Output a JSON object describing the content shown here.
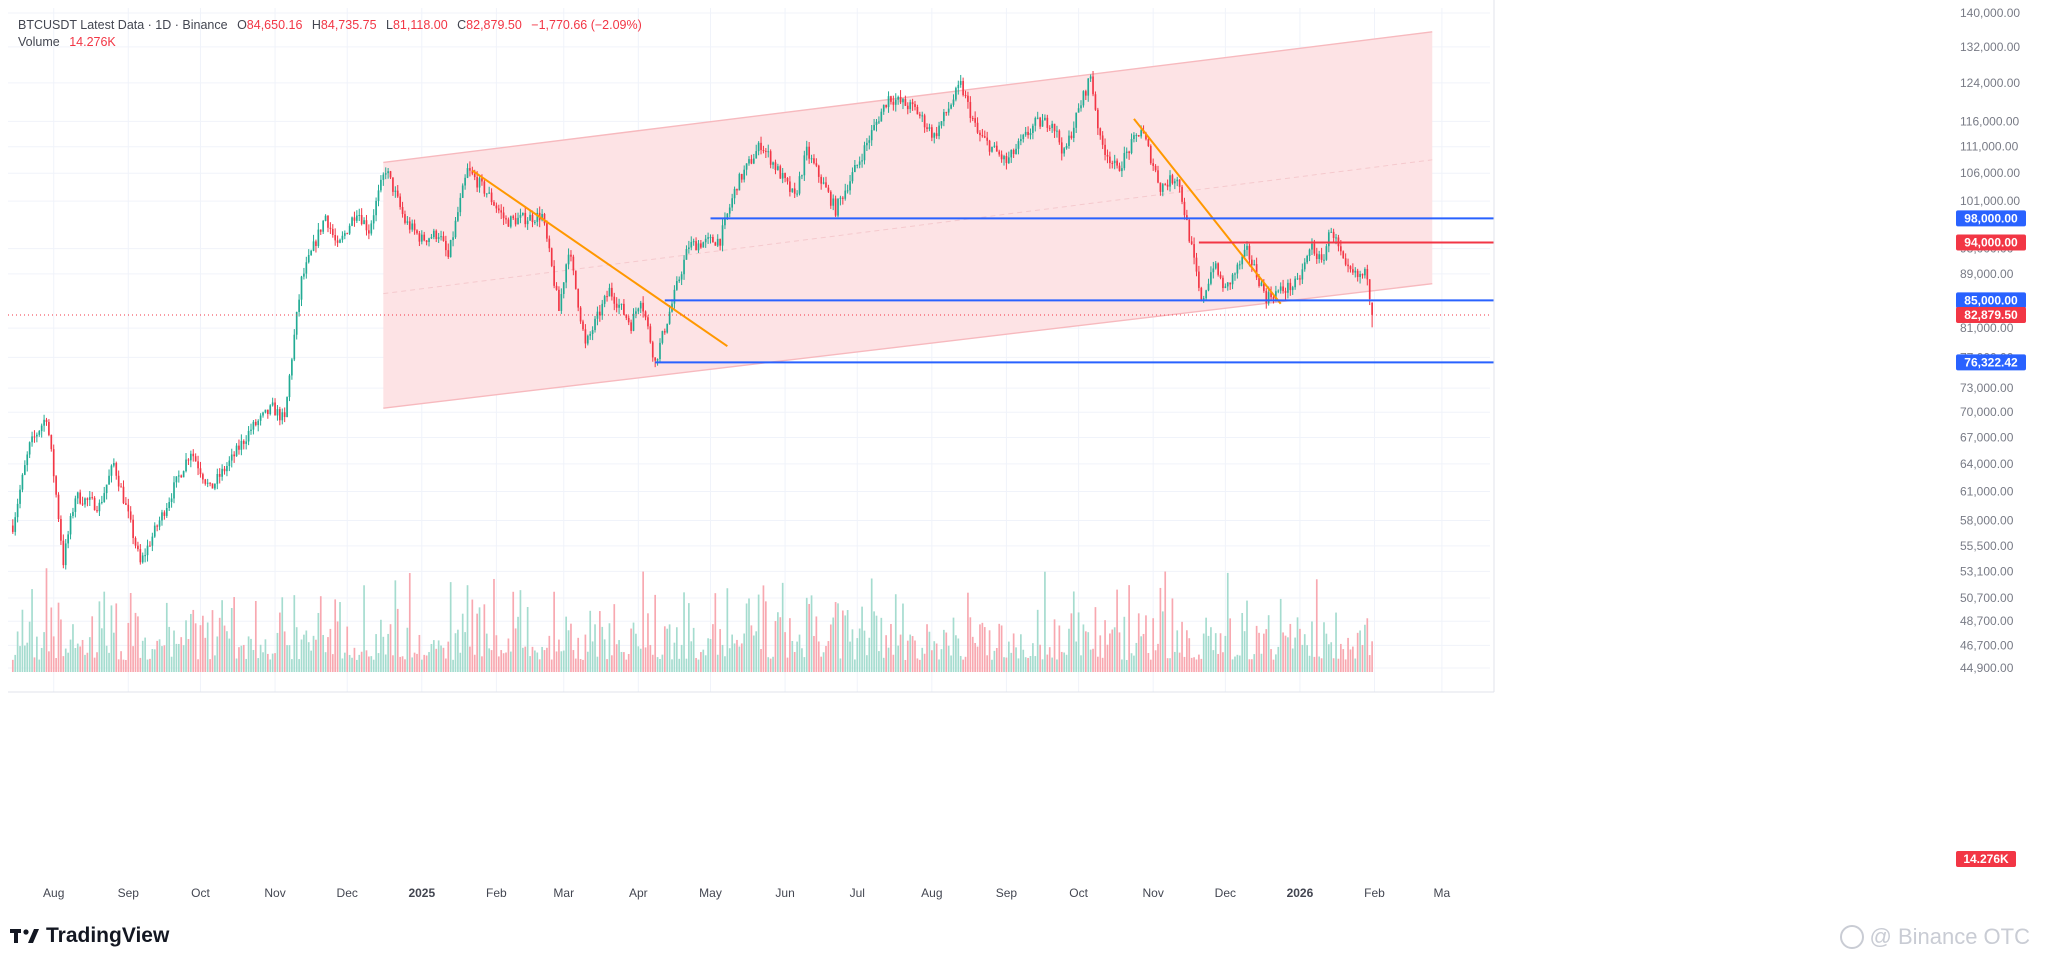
{
  "legend": {
    "symbol": "BTCUSDT Latest Data · 1D · Binance",
    "open_key": "O",
    "open": "84,650.16",
    "high_key": "H",
    "high": "84,735.75",
    "low_key": "L",
    "low": "81,118.00",
    "close_key": "C",
    "close": "82,879.50",
    "change": "−1,770.66 (−2.09%)",
    "volume_label": "Volume",
    "volume": "14.276K"
  },
  "brand": {
    "name": "TradingView",
    "logo_icon": "tradingview-logo-icon"
  },
  "watermark": {
    "text": "@ Binance OTC",
    "icon": "binance-otc-icon"
  },
  "colors": {
    "up": "#22ab94",
    "down": "#f23645",
    "blue_line": "#2962ff",
    "red_line": "#f23645",
    "trend": "#ff9800",
    "channel": "#f7b9be",
    "grid": "#f0f3fa"
  },
  "chart_data": {
    "type": "candlestick",
    "title": "BTCUSDT Latest Data · 1D · Binance",
    "xlabel": "",
    "ylabel": "",
    "y_scale": "log",
    "ylim": [
      44900,
      140000
    ],
    "y_ticks": [
      "140,000.00",
      "132,000.00",
      "124,000.00",
      "116,000.00",
      "111,000.00",
      "106,000.00",
      "101,000.00",
      "93,000.00",
      "89,000.00",
      "81,000.00",
      "77,000.00",
      "73,000.00",
      "70,000.00",
      "67,000.00",
      "64,000.00",
      "61,000.00",
      "58,000.00",
      "55,500.00",
      "53,100.00",
      "50,700.00",
      "48,700.00",
      "46,700.00",
      "44,900.00"
    ],
    "x_ticks": [
      "Aug",
      "Sep",
      "Oct",
      "Nov",
      "Dec",
      "2025",
      "Feb",
      "Mar",
      "Apr",
      "May",
      "Jun",
      "Jul",
      "Aug",
      "Sep",
      "Oct",
      "Nov",
      "Dec",
      "2026",
      "Feb",
      "Ma"
    ],
    "x_tick_bold": [
      "2025",
      "2026"
    ],
    "price_path": [
      [
        "2024-07-15",
        57500
      ],
      [
        "2024-07-22",
        66000
      ],
      [
        "2024-07-29",
        69500
      ],
      [
        "2024-08-05",
        54000
      ],
      [
        "2024-08-10",
        60500
      ],
      [
        "2024-08-20",
        59500
      ],
      [
        "2024-08-26",
        64000
      ],
      [
        "2024-09-06",
        53800
      ],
      [
        "2024-09-15",
        58500
      ],
      [
        "2024-09-27",
        65500
      ],
      [
        "2024-10-05",
        61200
      ],
      [
        "2024-10-14",
        64500
      ],
      [
        "2024-10-22",
        68000
      ],
      [
        "2024-10-31",
        70500
      ],
      [
        "2024-11-05",
        69000
      ],
      [
        "2024-11-12",
        88000
      ],
      [
        "2024-11-22",
        98500
      ],
      [
        "2024-11-27",
        93000
      ],
      [
        "2024-12-05",
        99500
      ],
      [
        "2024-12-10",
        96000
      ],
      [
        "2024-12-17",
        106800
      ],
      [
        "2024-12-25",
        97500
      ],
      [
        "2025-01-01",
        94500
      ],
      [
        "2025-01-08",
        95500
      ],
      [
        "2025-01-12",
        91500
      ],
      [
        "2025-01-20",
        106500
      ],
      [
        "2025-01-28",
        102500
      ],
      [
        "2025-02-05",
        97500
      ],
      [
        "2025-02-20",
        98500
      ],
      [
        "2025-02-27",
        83500
      ],
      [
        "2025-03-03",
        93000
      ],
      [
        "2025-03-10",
        78500
      ],
      [
        "2025-03-20",
        86500
      ],
      [
        "2025-03-29",
        81500
      ],
      [
        "2025-04-02",
        85500
      ],
      [
        "2025-04-08",
        76300
      ],
      [
        "2025-04-15",
        84500
      ],
      [
        "2025-04-22",
        93500
      ],
      [
        "2025-05-05",
        94500
      ],
      [
        "2025-05-12",
        104000
      ],
      [
        "2025-05-22",
        111500
      ],
      [
        "2025-06-05",
        101500
      ],
      [
        "2025-06-10",
        110000
      ],
      [
        "2025-06-22",
        99500
      ],
      [
        "2025-07-01",
        107500
      ],
      [
        "2025-07-14",
        121000
      ],
      [
        "2025-07-25",
        118500
      ],
      [
        "2025-08-02",
        113000
      ],
      [
        "2025-08-13",
        123500
      ],
      [
        "2025-08-20",
        113500
      ],
      [
        "2025-09-01",
        108000
      ],
      [
        "2025-09-13",
        115500
      ],
      [
        "2025-09-20",
        116000
      ],
      [
        "2025-09-25",
        109500
      ],
      [
        "2025-10-06",
        125500
      ],
      [
        "2025-10-10",
        112000
      ],
      [
        "2025-10-17",
        106500
      ],
      [
        "2025-10-27",
        114500
      ],
      [
        "2025-11-04",
        103500
      ],
      [
        "2025-11-11",
        105500
      ],
      [
        "2025-11-21",
        84500
      ],
      [
        "2025-11-26",
        90500
      ],
      [
        "2025-12-01",
        86500
      ],
      [
        "2025-12-10",
        92500
      ],
      [
        "2025-12-18",
        85500
      ],
      [
        "2025-12-31",
        87500
      ],
      [
        "2026-01-06",
        93500
      ],
      [
        "2026-01-10",
        90500
      ],
      [
        "2026-01-14",
        96500
      ],
      [
        "2026-01-20",
        89500
      ],
      [
        "2026-01-25",
        88500
      ],
      [
        "2026-01-29",
        89000
      ],
      [
        "2026-01-31",
        82879.5
      ]
    ],
    "last_price": 82879.5,
    "horizontal_levels": [
      {
        "price": 98000,
        "label": "98,000.00",
        "color": "blue",
        "from": "2025-05-01"
      },
      {
        "price": 94000,
        "label": "94,000.00",
        "color": "red",
        "from": "2025-11-20"
      },
      {
        "price": 85000,
        "label": "85,000.00",
        "color": "blue",
        "from": "2025-04-12"
      },
      {
        "price": 76322.42,
        "label": "76,322.42",
        "color": "blue",
        "from": "2025-04-08"
      }
    ],
    "last_price_label": "82,879.50",
    "volume_label": "14.276K",
    "trendlines": [
      {
        "from": [
          "2025-01-22",
          106500
        ],
        "to": [
          "2025-05-08",
          78500
        ]
      },
      {
        "from": [
          "2025-10-24",
          116500
        ],
        "to": [
          "2025-12-24",
          84500
        ]
      }
    ],
    "channel": {
      "start": "2024-12-16",
      "end": "2026-02-25",
      "upper": [
        108000,
        135500
      ],
      "lower": [
        70500,
        87500
      ],
      "mid": [
        86000,
        108500
      ]
    }
  }
}
